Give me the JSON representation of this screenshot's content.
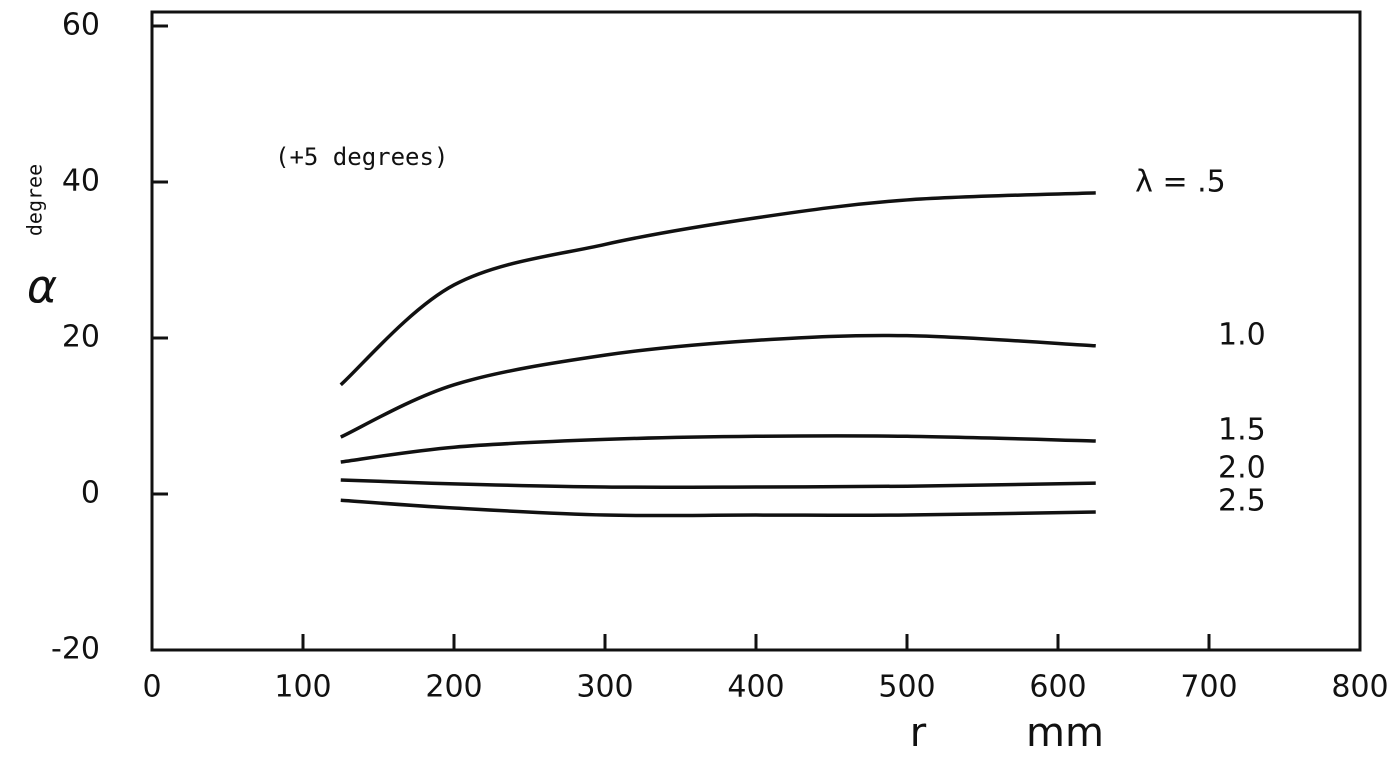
{
  "chart_data": {
    "type": "line",
    "annotation": "(+5 degrees)",
    "y_label": "α",
    "y_unit": "degree",
    "x_label": "r",
    "x_unit": "mm",
    "x": [
      125,
      200,
      300,
      400,
      500,
      625
    ],
    "series": [
      {
        "name": "λ = .5",
        "color": "#111111",
        "values": [
          14,
          26.8,
          32,
          35.4,
          37.7,
          38.6
        ]
      },
      {
        "name": "1.0",
        "color": "#111111",
        "values": [
          7.3,
          14,
          17.8,
          19.7,
          20.3,
          19
        ]
      },
      {
        "name": "1.5",
        "color": "#111111",
        "values": [
          4.1,
          6,
          7,
          7.4,
          7.4,
          6.8
        ]
      },
      {
        "name": "2.0",
        "color": "#111111",
        "values": [
          1.8,
          1.3,
          0.9,
          0.9,
          1,
          1.4
        ]
      },
      {
        "name": "2.5",
        "color": "#111111",
        "values": [
          -0.8,
          -1.8,
          -2.7,
          -2.7,
          -2.7,
          -2.3
        ]
      }
    ],
    "xlim": [
      0,
      800
    ],
    "xticks": [
      0,
      100,
      200,
      300,
      400,
      500,
      600,
      700,
      800
    ],
    "ylim": [
      -20,
      60
    ],
    "yticks": [
      -20,
      0,
      20,
      40,
      60
    ]
  }
}
